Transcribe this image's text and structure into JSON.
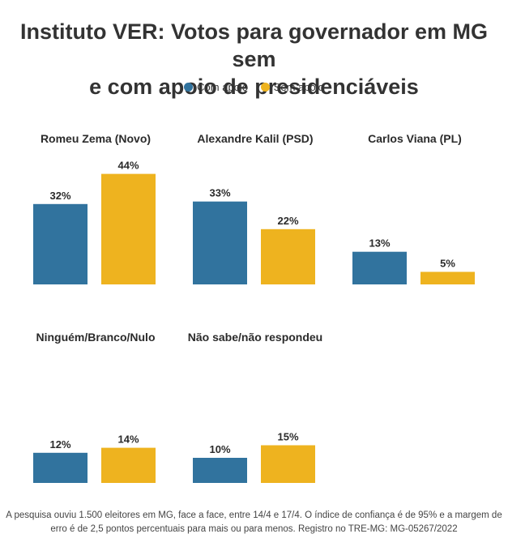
{
  "title": {
    "line1": "Instituto VER: Votos para governador em MG sem",
    "line2": "e com apoio de presidenciáveis"
  },
  "legend": [
    {
      "label": "Com apoio",
      "color": "#31739e"
    },
    {
      "label": "Sem apoio",
      "color": "#eeb31f"
    }
  ],
  "chart_data": {
    "type": "bar",
    "series_names": [
      "Com apoio",
      "Sem apoio"
    ],
    "panels": [
      {
        "title": "Romeu Zema (Novo)",
        "values": [
          32,
          44
        ],
        "labels": [
          "32%",
          "44%"
        ]
      },
      {
        "title": "Alexandre Kalil (PSD)",
        "values": [
          33,
          22
        ],
        "labels": [
          "33%",
          "22%"
        ]
      },
      {
        "title": "Carlos Viana (PL)",
        "values": [
          13,
          5
        ],
        "labels": [
          "13%",
          "5%"
        ]
      },
      {
        "title": "Ninguém/Branco/Nulo",
        "values": [
          12,
          14
        ],
        "labels": [
          "12%",
          "14%"
        ]
      },
      {
        "title": "Não sabe/não respondeu",
        "values": [
          10,
          15
        ],
        "labels": [
          "10%",
          "15%"
        ]
      }
    ],
    "unit": "%"
  },
  "footer": {
    "line1": "A pesquisa ouviu 1.500 eleitores em MG, face a face, entre 14/4 e 17/4. O índice de confiança é de 95% e a margem de",
    "line2": "erro é de 2,5 pontos percentuais para mais ou para menos. Registro no TRE-MG: MG-05267/2022"
  }
}
